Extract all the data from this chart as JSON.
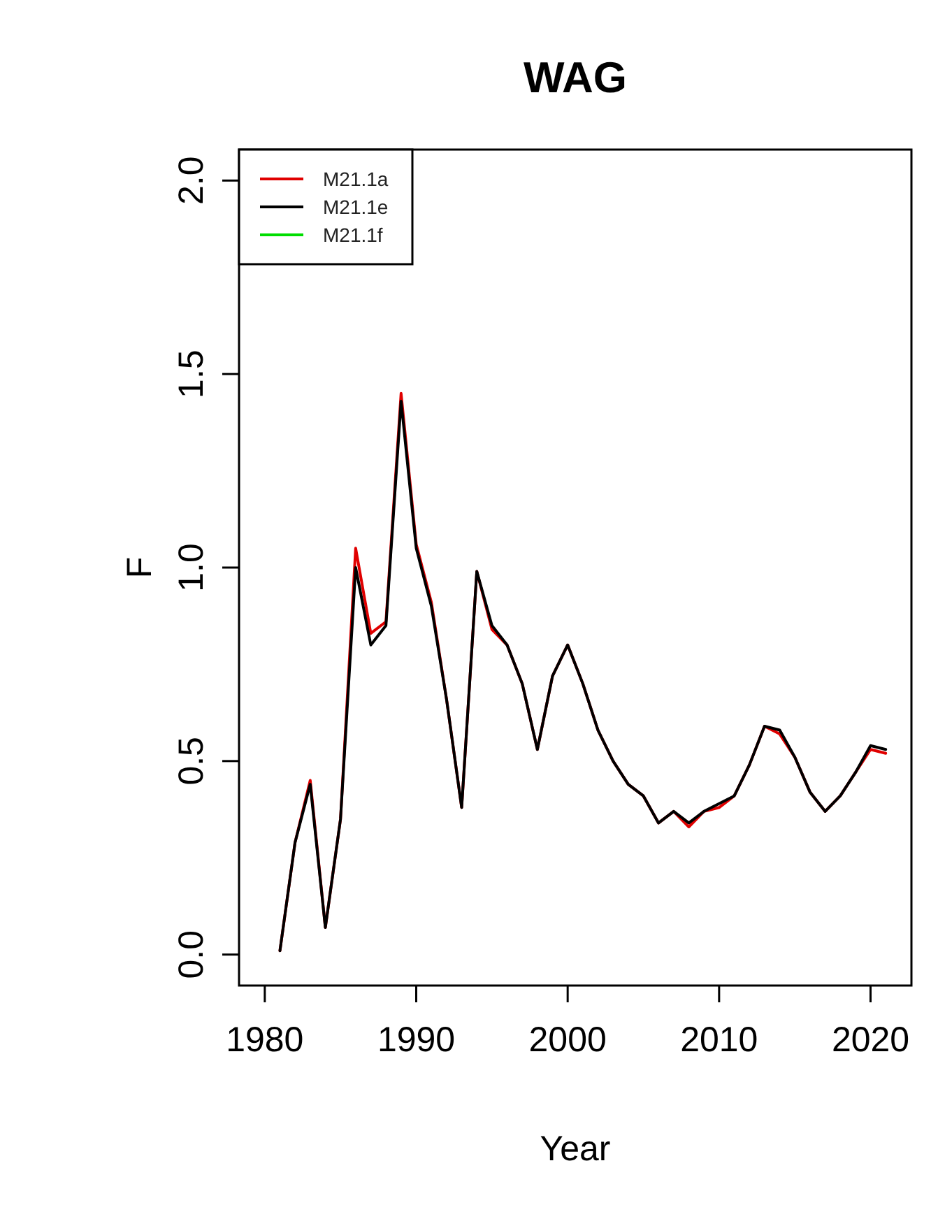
{
  "chart_data": {
    "type": "line",
    "title": "WAG",
    "xlabel": "Year",
    "ylabel": "F",
    "x": [
      1981,
      1982,
      1983,
      1984,
      1985,
      1986,
      1987,
      1988,
      1989,
      1990,
      1991,
      1992,
      1993,
      1994,
      1995,
      1996,
      1997,
      1998,
      1999,
      2000,
      2001,
      2002,
      2003,
      2004,
      2005,
      2006,
      2007,
      2008,
      2009,
      2010,
      2011,
      2012,
      2013,
      2014,
      2015,
      2016,
      2017,
      2018,
      2019,
      2020,
      2021
    ],
    "series": [
      {
        "name": "M21.1a",
        "color": "#e00000",
        "values": [
          0.01,
          0.29,
          0.45,
          0.07,
          0.35,
          1.05,
          0.83,
          0.86,
          1.45,
          1.06,
          0.91,
          0.66,
          0.38,
          0.99,
          0.84,
          0.8,
          0.7,
          0.53,
          0.72,
          0.8,
          0.7,
          0.58,
          0.5,
          0.44,
          0.41,
          0.34,
          0.37,
          0.33,
          0.37,
          0.38,
          0.41,
          0.49,
          0.59,
          0.57,
          0.51,
          0.42,
          0.37,
          0.41,
          0.47,
          0.53,
          0.52
        ]
      },
      {
        "name": "M21.1e",
        "color": "#000000",
        "values": [
          0.01,
          0.29,
          0.44,
          0.07,
          0.35,
          1.0,
          0.8,
          0.85,
          1.43,
          1.05,
          0.9,
          0.66,
          0.38,
          0.99,
          0.85,
          0.8,
          0.7,
          0.53,
          0.72,
          0.8,
          0.7,
          0.58,
          0.5,
          0.44,
          0.41,
          0.34,
          0.37,
          0.34,
          0.37,
          0.39,
          0.41,
          0.49,
          0.59,
          0.58,
          0.51,
          0.42,
          0.37,
          0.41,
          0.47,
          0.54,
          0.53
        ]
      },
      {
        "name": "M21.1f",
        "color": "#00dd00",
        "values": [
          null,
          null,
          null,
          null,
          null,
          null,
          null,
          null,
          null,
          null,
          null,
          null,
          null,
          null,
          null,
          null,
          null,
          null,
          null,
          null,
          null,
          null,
          null,
          null,
          null,
          null,
          null,
          null,
          null,
          null,
          null,
          null,
          null,
          null,
          null,
          null,
          null,
          null,
          null,
          null,
          null
        ]
      }
    ],
    "xlim": [
      1978.3,
      2022.7
    ],
    "xticks": [
      1980,
      1990,
      2000,
      2010,
      2020
    ],
    "ylim": [
      -0.08,
      2.08
    ],
    "yticks": [
      {
        "value": 0,
        "label": "0.0"
      },
      {
        "value": 0.5,
        "label": "0.5"
      },
      {
        "value": 1,
        "label": "1.0"
      },
      {
        "value": 1.5,
        "label": "1.5"
      },
      {
        "value": 2,
        "label": "2.0"
      }
    ],
    "legend": "top left",
    "line_style": "solid",
    "marker": "none",
    "grid": false
  }
}
